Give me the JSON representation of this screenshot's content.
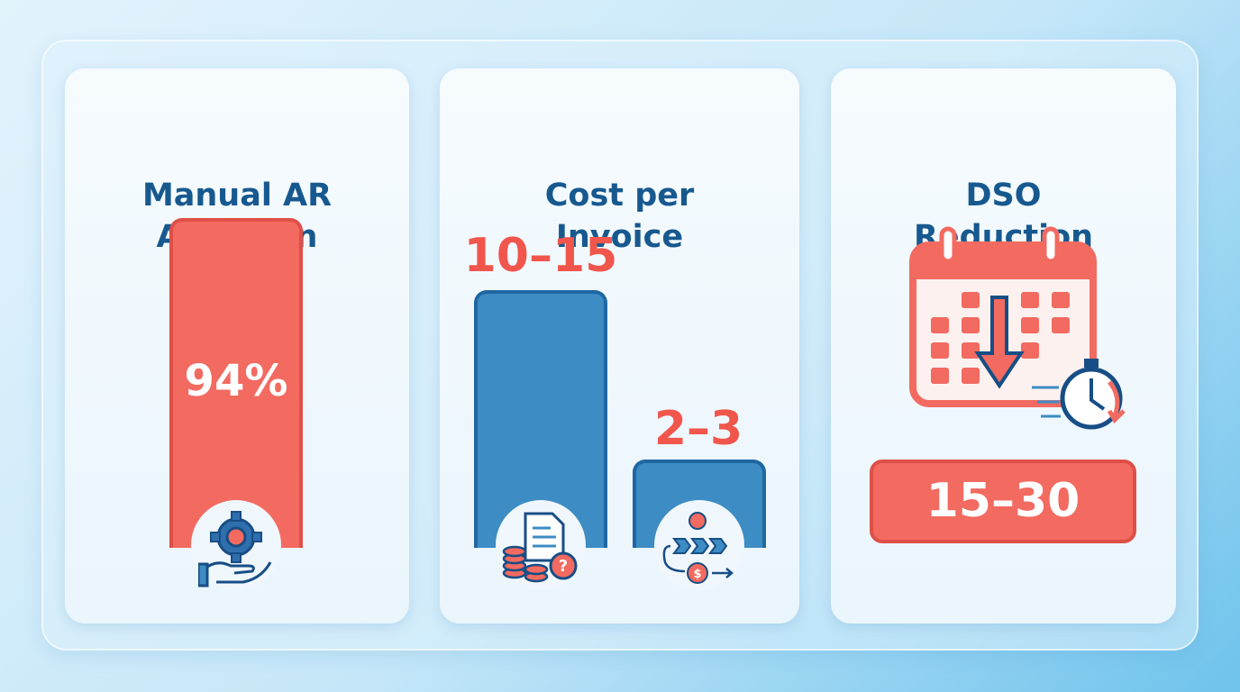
{
  "cards": [
    {
      "title": [
        "Manual AR",
        "Adoption"
      ],
      "value": "94%"
    },
    {
      "title": [
        "Cost per",
        "Invoice"
      ],
      "bars": [
        {
          "label": "10–15"
        },
        {
          "label": "2–3"
        }
      ]
    },
    {
      "title": [
        "DSO",
        "Reduction"
      ],
      "value": "15–30"
    }
  ]
}
